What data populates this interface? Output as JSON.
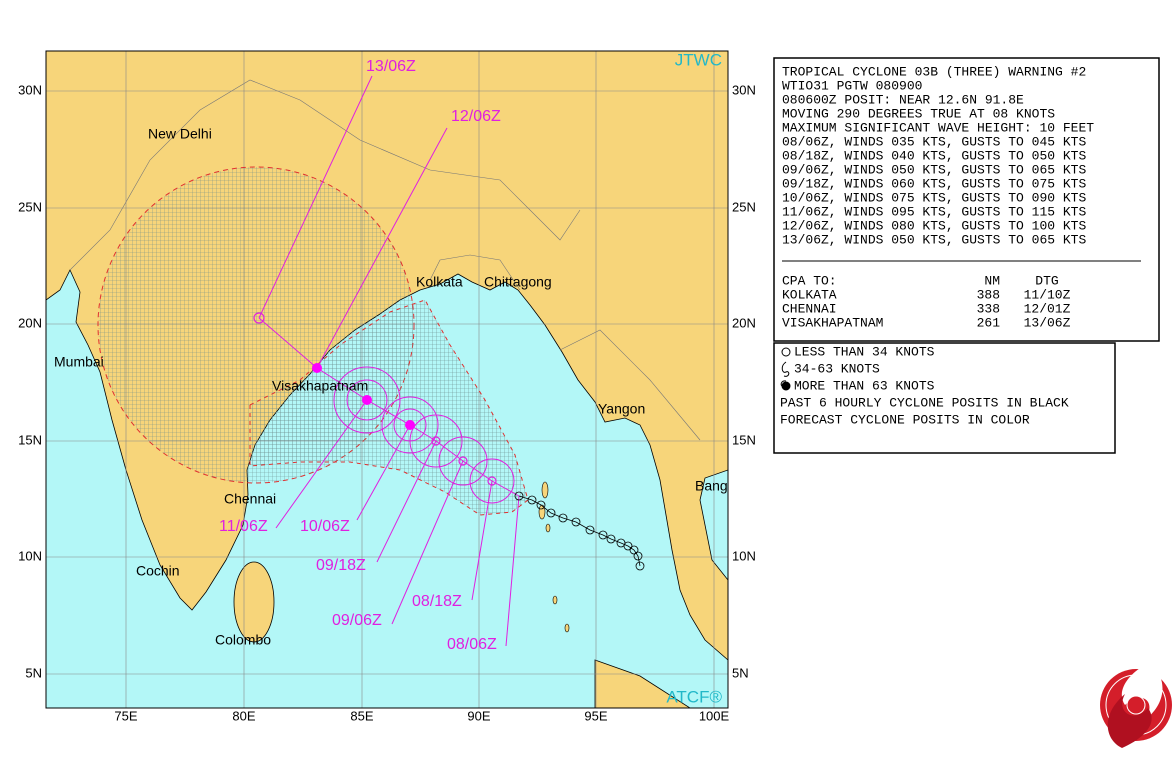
{
  "map": {
    "agency": "JTWC",
    "source": "ATCF®",
    "lat_labels": [
      "30N",
      "25N",
      "20N",
      "15N",
      "10N",
      "5N"
    ],
    "lon_labels": [
      "75E",
      "80E",
      "85E",
      "90E",
      "95E",
      "100E"
    ],
    "places": [
      "New Delhi",
      "Kolkata",
      "Chittagong",
      "Mumbai",
      "Visakhapatnam",
      "Yangon",
      "Bang",
      "Chennai",
      "Cochin",
      "Colombo"
    ],
    "track_labels": [
      "13/06Z",
      "12/06Z",
      "11/06Z",
      "10/06Z",
      "09/18Z",
      "09/06Z",
      "08/18Z",
      "08/06Z"
    ]
  },
  "warning": {
    "lines": [
      "TROPICAL CYCLONE 03B (THREE) WARNING #2",
      "WTIO31 PGTW 080900",
      "080600Z POSIT: NEAR 12.6N 91.8E",
      "MOVING 290 DEGREES TRUE AT 08 KNOTS",
      "MAXIMUM SIGNIFICANT WAVE HEIGHT: 10 FEET",
      "08/06Z, WINDS 035 KTS, GUSTS TO 045 KTS",
      "08/18Z, WINDS 040 KTS, GUSTS TO 050 KTS",
      "09/06Z, WINDS 050 KTS, GUSTS TO 065 KTS",
      "09/18Z, WINDS 060 KTS, GUSTS TO 075 KTS",
      "10/06Z, WINDS 075 KTS, GUSTS TO 090 KTS",
      "11/06Z, WINDS 095 KTS, GUSTS TO 115 KTS",
      "12/06Z, WINDS 080 KTS, GUSTS TO 100 KTS",
      "13/06Z, WINDS 050 KTS, GUSTS TO 065 KTS"
    ],
    "cpa": {
      "header": [
        "CPA TO:",
        "NM",
        "DTG"
      ],
      "rows": [
        [
          "KOLKATA",
          "388",
          "11/10Z"
        ],
        [
          "CHENNAI",
          "338",
          "12/01Z"
        ],
        [
          "VISAKHAPATNAM",
          "261",
          "13/06Z"
        ]
      ]
    }
  },
  "legend": {
    "lines": [
      "LESS THAN 34 KNOTS",
      "34-63 KNOTS",
      "MORE THAN 63 KNOTS",
      "PAST 6 HOURLY CYCLONE POSITS IN BLACK",
      "FORECAST CYCLONE POSITS IN COLOR"
    ]
  }
}
